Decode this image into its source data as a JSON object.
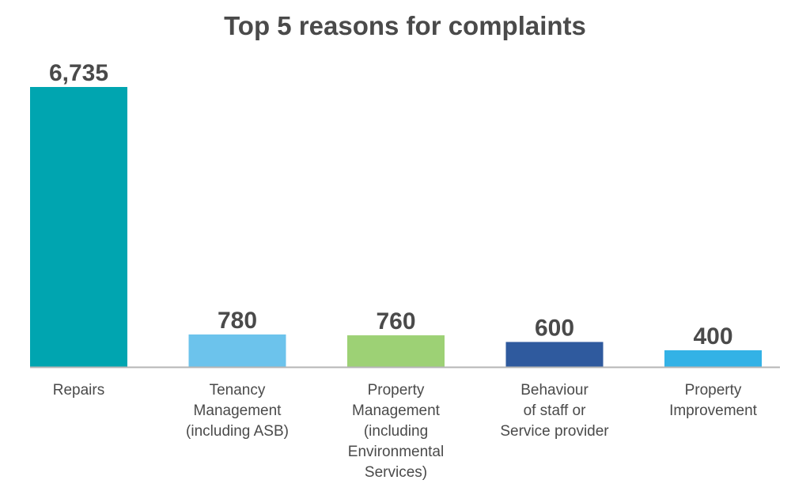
{
  "chart_data": {
    "type": "bar",
    "title": "Top 5 reasons for complaints",
    "xlabel": "",
    "ylabel": "",
    "ylim": [
      0,
      6735
    ],
    "grid": false,
    "legend": "none",
    "categories": [
      "Repairs",
      "Tenancy Management (including ASB)",
      "Property Management (including Environmental Services)",
      "Behaviour of staff or Service provider",
      "Property Improvement"
    ],
    "category_lines": [
      [
        "Repairs"
      ],
      [
        "Tenancy",
        "Management",
        "(including ASB)"
      ],
      [
        "Property",
        "Management",
        "(including",
        "Environmental",
        "Services)"
      ],
      [
        "Behaviour",
        "of staff or",
        "Service provider"
      ],
      [
        "Property",
        "Improvement"
      ]
    ],
    "values": [
      6735,
      780,
      760,
      600,
      400
    ],
    "value_labels": [
      "6,735",
      "780",
      "760",
      "600",
      "400"
    ],
    "colors": [
      "#00a5b0",
      "#6cc3ec",
      "#9dd175",
      "#2f5a9e",
      "#33b2e6"
    ],
    "axis_color": "#b5b5b5"
  }
}
